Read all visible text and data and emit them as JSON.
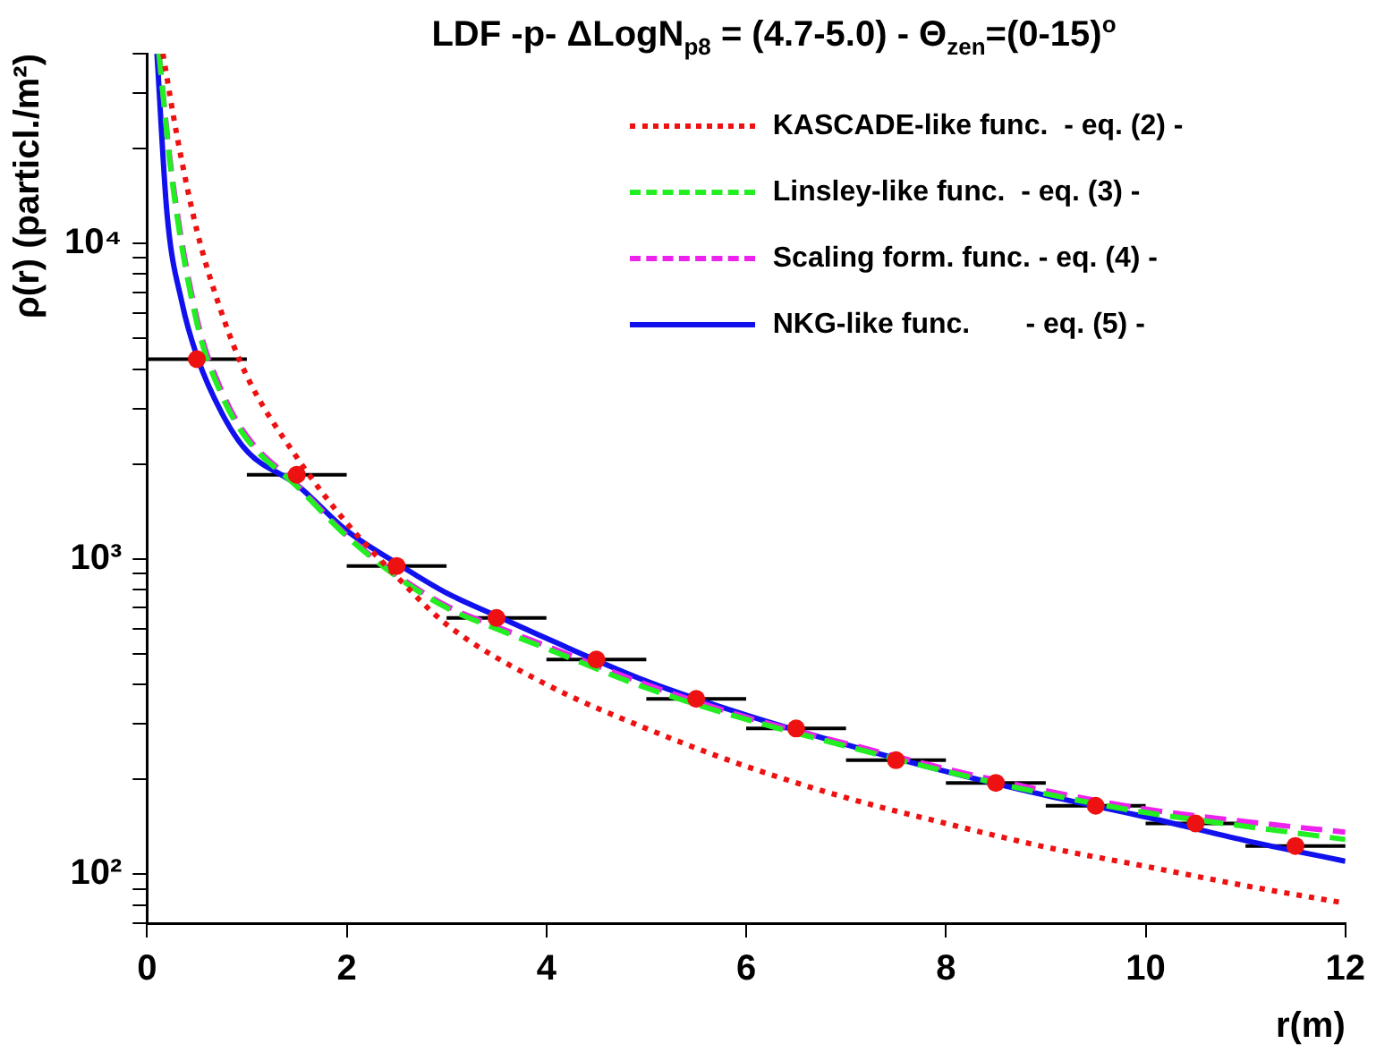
{
  "chart_data": {
    "type": "line",
    "title": "LDF -p-  ΔLogN$_{p8}$ = (4.7-5.0) - Θ$_{zen}$=(0-15)$^{o}$",
    "xlabel": "r(m)",
    "ylabel": "ρ(r) (particl./m²)",
    "xlim": [
      0,
      12
    ],
    "xticks": [
      0,
      2,
      4,
      6,
      8,
      10,
      12
    ],
    "ylim": [
      70,
      40000
    ],
    "yticks": [
      {
        "value": 70,
        "label": null
      },
      {
        "value": 80,
        "label": null
      },
      {
        "value": 90,
        "label": null
      },
      {
        "value": 100,
        "label": "10²"
      },
      {
        "value": 200,
        "label": null
      },
      {
        "value": 300,
        "label": null
      },
      {
        "value": 400,
        "label": null
      },
      {
        "value": 500,
        "label": null
      },
      {
        "value": 600,
        "label": null
      },
      {
        "value": 700,
        "label": null
      },
      {
        "value": 800,
        "label": null
      },
      {
        "value": 900,
        "label": null
      },
      {
        "value": 1000,
        "label": "10³"
      },
      {
        "value": 2000,
        "label": null
      },
      {
        "value": 3000,
        "label": null
      },
      {
        "value": 4000,
        "label": null
      },
      {
        "value": 5000,
        "label": null
      },
      {
        "value": 6000,
        "label": null
      },
      {
        "value": 7000,
        "label": null
      },
      {
        "value": 8000,
        "label": null
      },
      {
        "value": 9000,
        "label": null
      },
      {
        "value": 10000,
        "label": "10⁴"
      },
      {
        "value": 20000,
        "label": null
      },
      {
        "value": 30000,
        "label": null
      },
      {
        "value": 40000,
        "label": null
      }
    ],
    "log": "y",
    "grid": false,
    "legend": "top right",
    "series": [
      {
        "type": "scatter",
        "color": "#ee1111",
        "marker": "circle",
        "x": [
          0.5,
          1.5,
          2.5,
          3.5,
          4.5,
          5.5,
          6.5,
          7.5,
          8.5,
          9.5,
          10.5,
          11.5
        ],
        "values": [
          4300,
          1850,
          950,
          650,
          480,
          360,
          290,
          230,
          195,
          165,
          145,
          123
        ],
        "xerrors": [
          0.5,
          0.5,
          0.5,
          0.5,
          0.5,
          0.5,
          0.5,
          0.5,
          0.5,
          0.5,
          0.5,
          0.5
        ]
      },
      {
        "name": "KASCADE-like func.  - eq. (2) -",
        "color": "#ee1111",
        "line_style": "dotted",
        "x": [
          0.16,
          0.3,
          0.5,
          0.75,
          1,
          1.5,
          2,
          2.5,
          3,
          4,
          5,
          6,
          7,
          8,
          9,
          10,
          11,
          12
        ],
        "values": [
          40000,
          22000,
          11000,
          6000,
          3800,
          2100,
          1300,
          880,
          620,
          400,
          290,
          220,
          175,
          145,
          122,
          106,
          92,
          81
        ]
      },
      {
        "name": "Linsley-like func.  - eq. (3) -",
        "color": "#22ee22",
        "line_style": "dashed",
        "x": [
          0.12,
          0.25,
          0.5,
          0.75,
          1,
          1.5,
          2,
          2.5,
          3,
          3.5,
          4,
          5,
          6,
          7,
          8,
          9,
          10,
          11,
          12
        ],
        "values": [
          40000,
          16000,
          5600,
          3300,
          2400,
          1700,
          1180,
          880,
          700,
          600,
          520,
          390,
          310,
          255,
          212,
          180,
          157,
          142,
          129
        ]
      },
      {
        "name": "Scaling form. func. - eq. (4) -",
        "color": "#ee22ee",
        "line_style": "dashed",
        "x": [
          0.12,
          0.25,
          0.5,
          0.75,
          1,
          1.5,
          2,
          2.5,
          3,
          3.5,
          4,
          5,
          6,
          7,
          8,
          9,
          10,
          11,
          12
        ],
        "values": [
          40000,
          16500,
          5800,
          3400,
          2450,
          1720,
          1190,
          890,
          710,
          610,
          530,
          400,
          315,
          260,
          216,
          184,
          161,
          147,
          136
        ]
      },
      {
        "name": "NKG-like func.       - eq. (5) -",
        "color": "#1111ee",
        "line_style": "solid",
        "x": [
          0.1,
          0.2,
          0.35,
          0.5,
          0.75,
          1,
          1.5,
          2,
          2.5,
          3,
          3.5,
          4,
          5,
          6,
          7,
          8,
          9,
          10,
          11,
          12
        ],
        "values": [
          40000,
          12500,
          6500,
          4400,
          2900,
          2200,
          1720,
          1230,
          970,
          780,
          660,
          560,
          410,
          320,
          258,
          212,
          178,
          152,
          128,
          110
        ]
      }
    ]
  }
}
